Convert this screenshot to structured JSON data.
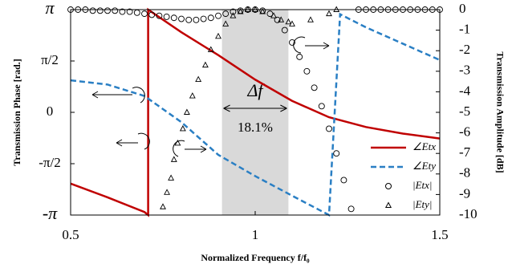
{
  "chart_data": {
    "type": "line",
    "xlabel": "Normalized Frequency f/f₀",
    "ylabel": "Transmission Phase [rad.]",
    "y2label": "Transmission Amplitude [dB]",
    "xlim": [
      0.5,
      1.5
    ],
    "xticks": [
      0.5,
      1,
      1.5
    ],
    "ylim": [
      -3.14159,
      3.14159
    ],
    "yticks": [
      {
        "value": -3.14159,
        "label": "-π"
      },
      {
        "value": -1.5708,
        "label": "-π/2"
      },
      0,
      {
        "value": 1.5708,
        "label": "π/2"
      },
      {
        "value": 3.14159,
        "label": "π"
      }
    ],
    "y2lim": [
      -10,
      0
    ],
    "y2ticks": [
      -10,
      -9,
      -8,
      -7,
      -6,
      -5,
      -4,
      -3,
      -2,
      -1,
      0
    ],
    "shaded_region": [
      0.91,
      1.09
    ],
    "annotations": [
      "Δf",
      "18.1%"
    ],
    "legend": "lower right",
    "series": [
      {
        "name": "∠Etx",
        "color": "#c00000",
        "style": "solid",
        "x": [
          0.5,
          0.6,
          0.7,
          0.71,
          0.71,
          0.8,
          0.9,
          1.0,
          1.1,
          1.2,
          1.3,
          1.4,
          1.5
        ],
        "values": [
          -2.18,
          -2.6,
          -3.05,
          -3.14159,
          3.14159,
          2.45,
          1.75,
          1.0,
          0.35,
          -0.15,
          -0.45,
          -0.65,
          -0.8
        ]
      },
      {
        "name": "∠Ety",
        "color": "#2a7fc4",
        "style": "dashed",
        "x": [
          0.5,
          0.6,
          0.7,
          0.8,
          0.9,
          1.0,
          1.1,
          1.2,
          1.23,
          1.3,
          1.4,
          1.5
        ],
        "values": [
          0.98,
          0.85,
          0.5,
          -0.3,
          -1.3,
          -1.95,
          -2.55,
          -3.14159,
          3.0,
          2.6,
          2.1,
          1.6
        ]
      },
      {
        "name": "|Etx|",
        "color": "#000000",
        "marker": "circle",
        "axis": "y2",
        "x": [
          0.5,
          0.52,
          0.54,
          0.56,
          0.58,
          0.6,
          0.62,
          0.64,
          0.66,
          0.68,
          0.7,
          0.72,
          0.74,
          0.76,
          0.78,
          0.8,
          0.82,
          0.84,
          0.86,
          0.88,
          0.9,
          0.92,
          0.94,
          0.96,
          0.98,
          1.0,
          1.02,
          1.04,
          1.06,
          1.08,
          1.1,
          1.12,
          1.14,
          1.16,
          1.18,
          1.2,
          1.22,
          1.24,
          1.26,
          1.28,
          1.3,
          1.32,
          1.34,
          1.36,
          1.38,
          1.4,
          1.42,
          1.44,
          1.46,
          1.48,
          1.5
        ],
        "values": [
          0,
          0,
          0,
          -0.05,
          -0.05,
          -0.05,
          -0.05,
          -0.1,
          -0.1,
          -0.15,
          -0.2,
          -0.25,
          -0.3,
          -0.35,
          -0.4,
          -0.45,
          -0.5,
          -0.5,
          -0.45,
          -0.4,
          -0.3,
          -0.2,
          -0.1,
          -0.05,
          0,
          0,
          -0.05,
          -0.2,
          -0.5,
          -1.0,
          -1.6,
          -2.3,
          -3.0,
          -3.8,
          -4.7,
          -5.8,
          -7.0,
          -8.3,
          -9.7,
          0,
          0,
          0,
          0,
          0,
          0,
          0,
          0,
          0,
          0,
          0,
          0
        ]
      },
      {
        "name": "|Ety|",
        "color": "#000000",
        "marker": "triangle",
        "axis": "y2",
        "x": [
          0.75,
          0.761,
          0.772,
          0.78,
          0.79,
          0.804,
          0.815,
          0.83,
          0.846,
          0.865,
          0.88,
          0.9,
          0.92,
          0.94,
          0.96,
          0.98,
          1.0,
          1.02,
          1.05,
          1.07,
          1.09,
          1.1,
          1.15,
          1.2,
          1.22
        ],
        "values": [
          -9.6,
          -8.9,
          -8.2,
          -7.3,
          -6.5,
          -5.8,
          -5.0,
          -4.2,
          -3.4,
          -2.7,
          -1.95,
          -1.3,
          -0.7,
          -0.3,
          -0.1,
          0,
          0,
          -0.1,
          -0.3,
          -0.5,
          -0.6,
          -0.7,
          -0.5,
          -0.2,
          0
        ]
      }
    ]
  }
}
